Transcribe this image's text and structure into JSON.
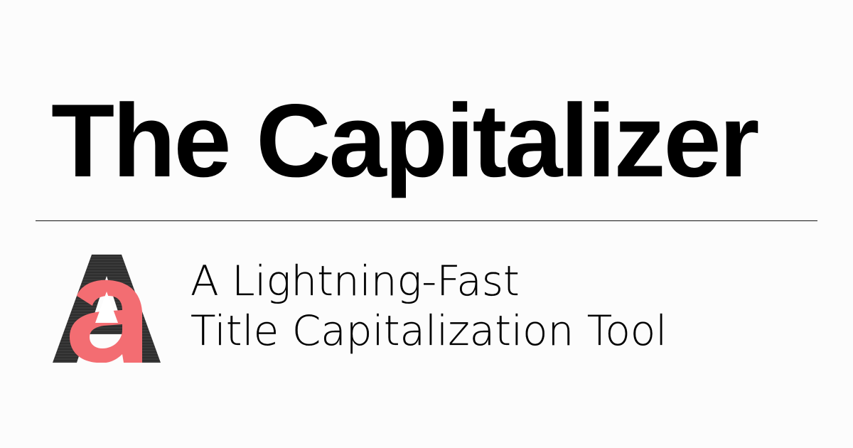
{
  "header": {
    "title": "The Capitalizer"
  },
  "logo": {
    "icon": "letter-a-logo-icon",
    "dark_color": "#2e2e2e",
    "accent_color": "#f36d72",
    "cutout_color": "#ffffff"
  },
  "tagline": {
    "line1": "A Lightning-Fast",
    "line2": "Title Capitalization Tool"
  }
}
